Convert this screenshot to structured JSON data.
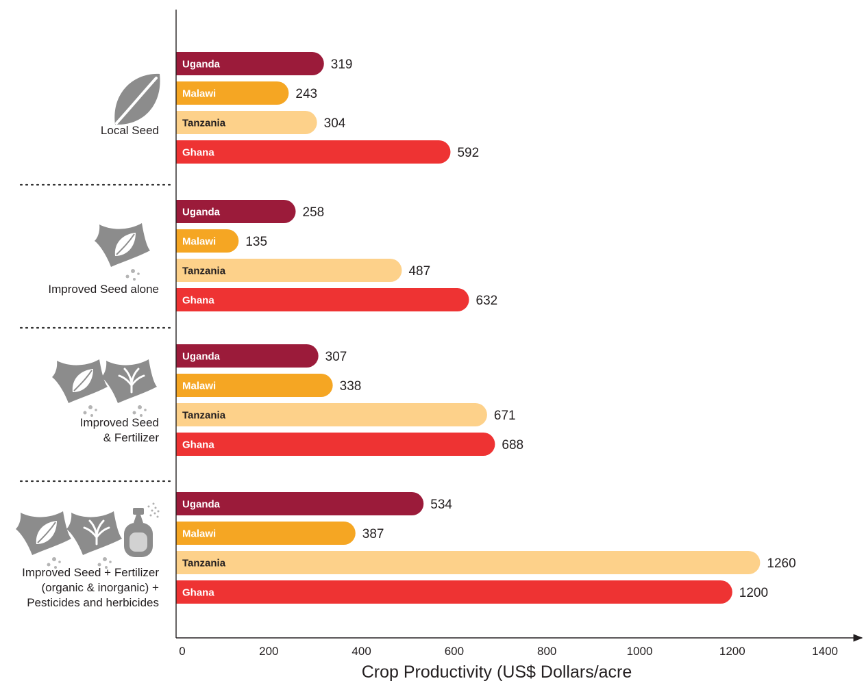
{
  "chart_data": {
    "type": "bar",
    "orientation": "horizontal",
    "title": "",
    "xlabel": "Crop Productivity (US$ Dollars/acre",
    "ylabel": "",
    "xlim": [
      0,
      1400
    ],
    "xticks": [
      0,
      200,
      400,
      600,
      800,
      1000,
      1200,
      1400
    ],
    "grid": false,
    "legend": "none",
    "series_colors": {
      "Uganda": "#9b1b3a",
      "Malawi": "#f5a623",
      "Tanzania": "#fdd18a",
      "Ghana": "#ee3333"
    },
    "bar_label_colors": {
      "Uganda": "#ffffff",
      "Malawi": "#ffffff",
      "Tanzania": "#231f20",
      "Ghana": "#ffffff"
    },
    "groups": [
      {
        "label_lines": [
          "Local Seed"
        ],
        "icons": [
          "leaf-icon"
        ],
        "bars": [
          {
            "country": "Uganda",
            "value": 319
          },
          {
            "country": "Malawi",
            "value": 243
          },
          {
            "country": "Tanzania",
            "value": 304
          },
          {
            "country": "Ghana",
            "value": 592
          }
        ]
      },
      {
        "label_lines": [
          "Improved Seed alone"
        ],
        "icons": [
          "seed-bag-icon"
        ],
        "bars": [
          {
            "country": "Uganda",
            "value": 258
          },
          {
            "country": "Malawi",
            "value": 135
          },
          {
            "country": "Tanzania",
            "value": 487
          },
          {
            "country": "Ghana",
            "value": 632
          }
        ]
      },
      {
        "label_lines": [
          "Improved Seed",
          "& Fertilizer"
        ],
        "icons": [
          "seed-bag-icon",
          "fertilizer-bag-icon"
        ],
        "bars": [
          {
            "country": "Uganda",
            "value": 307
          },
          {
            "country": "Malawi",
            "value": 338
          },
          {
            "country": "Tanzania",
            "value": 671
          },
          {
            "country": "Ghana",
            "value": 688
          }
        ]
      },
      {
        "label_lines": [
          "Improved Seed + Fertilizer",
          "(organic & inorganic) +",
          "Pesticides and herbicides"
        ],
        "icons": [
          "seed-bag-icon",
          "fertilizer-bag-icon",
          "spray-bottle-icon"
        ],
        "bars": [
          {
            "country": "Uganda",
            "value": 534
          },
          {
            "country": "Malawi",
            "value": 387
          },
          {
            "country": "Tanzania",
            "value": 1260
          },
          {
            "country": "Ghana",
            "value": 1200
          }
        ]
      }
    ]
  }
}
